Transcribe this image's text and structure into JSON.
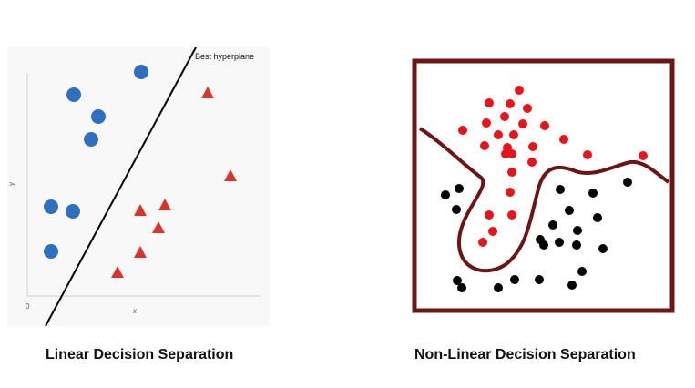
{
  "linear": {
    "caption": "Linear Decision Separation",
    "line_label": "Best hyperplane",
    "axis_x_label": "x",
    "axis_y_label": "y",
    "origin_label": "0",
    "circle_color": "#2f6fbf",
    "triangle_color": "#d9342b",
    "line_color": "#000000"
  },
  "nonlinear": {
    "caption": "Non-Linear Decision Separation",
    "frame_color": "#6e1414",
    "curve_color": "#6e1414",
    "red_color": "#e8141b",
    "black_color": "#000000"
  }
}
